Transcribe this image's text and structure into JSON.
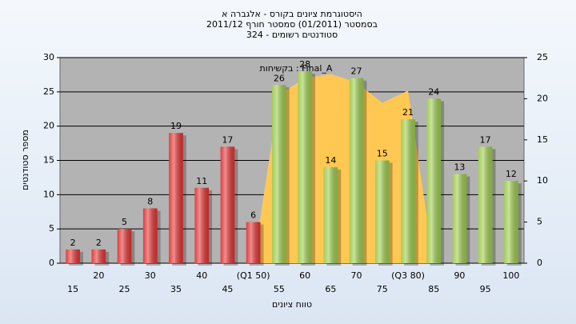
{
  "chart_data": {
    "type": "bar",
    "title": "היסטוגרמת ציונים בקורס - אלגברה א",
    "subtitle": "בסמסטר  (01/2011)  סמסטר חורף 2011/12",
    "subtitle2": "324 - סטודנטים רשומים",
    "x_label": "טווח ציונים",
    "y_label": "מספר סטודנטים",
    "categories": [
      "15",
      "20",
      "25",
      "30",
      "35",
      "40",
      "45",
      "(Q1 50)",
      "55",
      "60",
      "65",
      "70",
      "75",
      "(Q3 80)",
      "85",
      "90",
      "95",
      "100"
    ],
    "series": [
      {
        "name": "בקשיחות : Final_A",
        "type": "area",
        "axis": "y2",
        "color": "#ffc853",
        "values": [
          null,
          null,
          null,
          null,
          null,
          null,
          null,
          0,
          20.5,
          22.5,
          23,
          22,
          19.5,
          21,
          0,
          null,
          null,
          null
        ]
      },
      {
        "type": "bar",
        "color": "#e23232",
        "values": [
          2,
          2,
          5,
          8,
          19,
          11,
          17,
          6,
          null,
          null,
          null,
          null,
          null,
          null,
          null,
          null,
          null,
          null
        ]
      },
      {
        "type": "bar",
        "color": "#9ccb4c",
        "values": [
          null,
          null,
          null,
          null,
          null,
          null,
          null,
          null,
          26,
          28,
          14,
          27,
          15,
          21,
          24,
          13,
          17,
          12
        ]
      }
    ],
    "ylim": [
      0,
      30
    ],
    "yticks": [
      0,
      5,
      10,
      15,
      20,
      25,
      30
    ],
    "y2lim": [
      0,
      25
    ],
    "y2ticks": [
      0,
      5,
      10,
      15,
      20,
      25
    ],
    "grid": true
  }
}
